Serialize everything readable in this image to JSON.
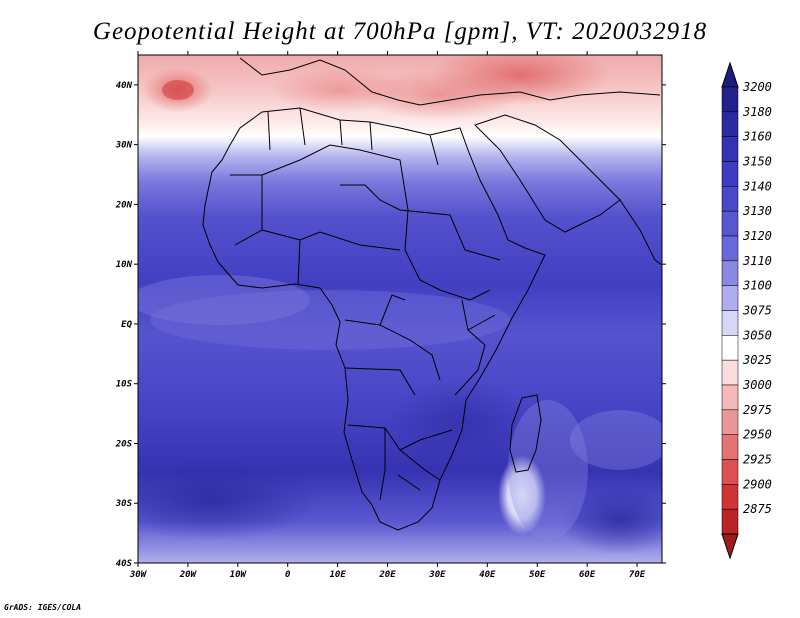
{
  "title": "Geopotential Height at 700hPa [gpm], VT: 2020032918",
  "credit": "GrADS: IGES/COLA",
  "map": {
    "lon_range": [
      -30,
      75
    ],
    "lat_range": [
      -40,
      45
    ],
    "lon_ticks": [
      {
        "value": -30,
        "label": "30W"
      },
      {
        "value": -20,
        "label": "20W"
      },
      {
        "value": -10,
        "label": "10W"
      },
      {
        "value": 0,
        "label": "0"
      },
      {
        "value": 10,
        "label": "10E"
      },
      {
        "value": 20,
        "label": "20E"
      },
      {
        "value": 30,
        "label": "30E"
      },
      {
        "value": 40,
        "label": "40E"
      },
      {
        "value": 50,
        "label": "50E"
      },
      {
        "value": 60,
        "label": "60E"
      },
      {
        "value": 70,
        "label": "70E"
      }
    ],
    "lat_ticks": [
      {
        "value": 40,
        "label": "40N"
      },
      {
        "value": 30,
        "label": "30N"
      },
      {
        "value": 20,
        "label": "20N"
      },
      {
        "value": 10,
        "label": "10N"
      },
      {
        "value": 0,
        "label": "EQ"
      },
      {
        "value": -10,
        "label": "10S"
      },
      {
        "value": -20,
        "label": "20S"
      },
      {
        "value": -30,
        "label": "30S"
      },
      {
        "value": -40,
        "label": "40S"
      }
    ]
  },
  "colorbar": {
    "levels": [
      {
        "label": "3200",
        "color": "#22208c"
      },
      {
        "label": "3180",
        "color": "#2c2aa0"
      },
      {
        "label": "3160",
        "color": "#3633b2"
      },
      {
        "label": "3150",
        "color": "#3f3cc0"
      },
      {
        "label": "3140",
        "color": "#4a48c8"
      },
      {
        "label": "3130",
        "color": "#5957d0"
      },
      {
        "label": "3120",
        "color": "#6a68d8"
      },
      {
        "label": "3110",
        "color": "#8a89e2"
      },
      {
        "label": "3100",
        "color": "#aeaded"
      },
      {
        "label": "3075",
        "color": "#d6d6f6"
      },
      {
        "label": "3050",
        "color": "#ffffff"
      },
      {
        "label": "3025",
        "color": "#fbdcdc"
      },
      {
        "label": "3000",
        "color": "#f4b9b9"
      },
      {
        "label": "2975",
        "color": "#ec9797"
      },
      {
        "label": "2950",
        "color": "#e47474"
      },
      {
        "label": "2925",
        "color": "#dc5252"
      },
      {
        "label": "2900",
        "color": "#d03434"
      },
      {
        "label": "2875",
        "color": "#b82424"
      }
    ],
    "top_color": "#1e1c7c",
    "bottom_color": "#a01c1c"
  }
}
